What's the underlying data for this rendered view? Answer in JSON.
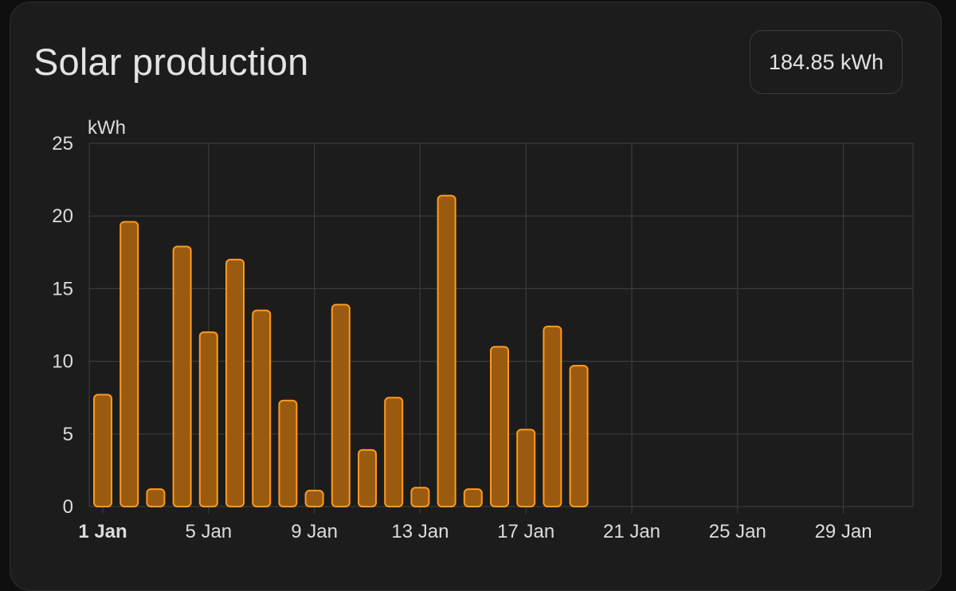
{
  "card": {
    "title": "Solar production",
    "total": "184.85 kWh"
  },
  "colors": {
    "card_background": "#1c1c1c",
    "bar_fill": "#9a5b10",
    "bar_stroke": "#ff9a1f",
    "grid": "#3a3a3a",
    "text": "#dcdcdc"
  },
  "chart_data": {
    "type": "bar",
    "unit_label": "kWh",
    "ylim": [
      0,
      25
    ],
    "y_ticks": [
      0,
      5,
      10,
      15,
      20,
      25
    ],
    "x_range_days": [
      1,
      31
    ],
    "x_ticks": [
      {
        "label": "1 Jan",
        "day": 1,
        "bold": true
      },
      {
        "label": "5 Jan",
        "day": 5,
        "bold": false
      },
      {
        "label": "9 Jan",
        "day": 9,
        "bold": false
      },
      {
        "label": "13 Jan",
        "day": 13,
        "bold": false
      },
      {
        "label": "17 Jan",
        "day": 17,
        "bold": false
      },
      {
        "label": "21 Jan",
        "day": 21,
        "bold": false
      },
      {
        "label": "25 Jan",
        "day": 25,
        "bold": false
      },
      {
        "label": "29 Jan",
        "day": 29,
        "bold": false
      }
    ],
    "series": [
      {
        "days": [
          1,
          2,
          3,
          4,
          5,
          6,
          7,
          8,
          9,
          10,
          11,
          12,
          13,
          14,
          15,
          16,
          17,
          18,
          19
        ],
        "values": [
          7.7,
          19.6,
          1.2,
          17.9,
          12.0,
          17.0,
          13.5,
          7.3,
          1.1,
          13.9,
          3.9,
          7.5,
          1.3,
          21.4,
          1.2,
          11.0,
          5.3,
          12.4,
          9.7
        ]
      }
    ],
    "grid": true,
    "legend": "none"
  }
}
